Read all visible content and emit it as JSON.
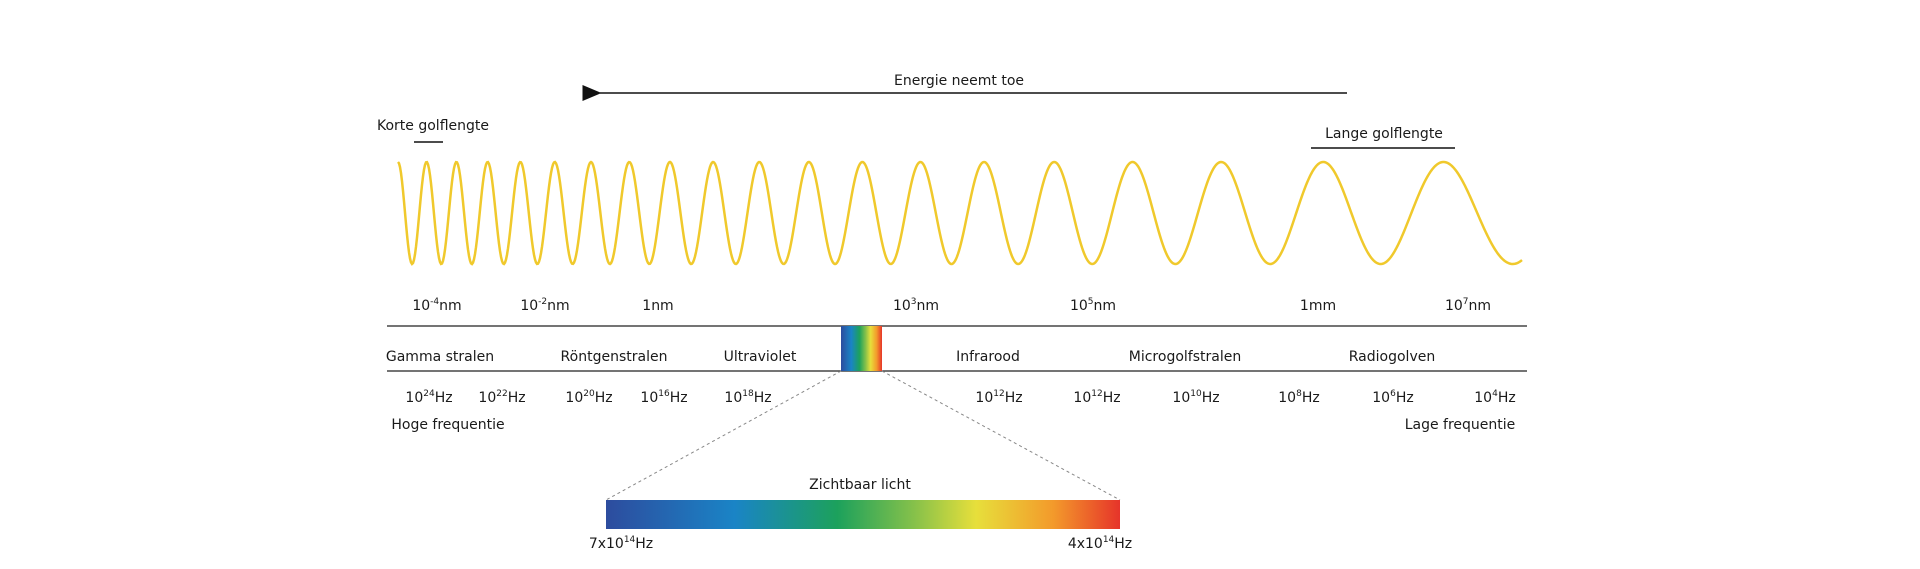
{
  "arrow_label": "Energie neemt toe",
  "short_wavelength": "Korte golflengte",
  "long_wavelength": "Lange golflengte",
  "wavelengths": [
    {
      "main": "10",
      "sup": "-4",
      "unit": "nm"
    },
    {
      "main": "10",
      "sup": "-2",
      "unit": "nm"
    },
    {
      "main": "1nm"
    },
    {
      "main": "10",
      "sup": "3",
      "unit": "nm"
    },
    {
      "main": "10",
      "sup": "5",
      "unit": "nm"
    },
    {
      "main": "1mm"
    },
    {
      "main": "10",
      "sup": "7",
      "unit": "nm"
    }
  ],
  "bands": [
    "Gamma stralen",
    "Röntgenstralen",
    "Ultraviolet",
    "Infrarood",
    "Microgolfstralen",
    "Radiogolven"
  ],
  "frequencies": [
    {
      "main": "10",
      "sup": "24",
      "unit": "Hz"
    },
    {
      "main": "10",
      "sup": "22",
      "unit": "Hz"
    },
    {
      "main": "10",
      "sup": "20",
      "unit": "Hz"
    },
    {
      "main": "10",
      "sup": "16",
      "unit": "Hz"
    },
    {
      "main": "10",
      "sup": "18",
      "unit": "Hz"
    },
    {
      "main": "10",
      "sup": "12",
      "unit": "Hz"
    },
    {
      "main": "10",
      "sup": "12",
      "unit": "Hz"
    },
    {
      "main": "10",
      "sup": "10",
      "unit": "Hz"
    },
    {
      "main": "10",
      "sup": "8",
      "unit": "Hz"
    },
    {
      "main": "10",
      "sup": "6",
      "unit": "Hz"
    },
    {
      "main": "10",
      "sup": "4",
      "unit": "Hz"
    }
  ],
  "high_frequency": "Hoge frequentie",
  "low_frequency": "Lage frequentie",
  "visible_light": {
    "title": "Zichtbaar licht",
    "start": {
      "main": "7x10",
      "sup": "14",
      "unit": "Hz"
    },
    "end": {
      "main": "4x10",
      "sup": "14",
      "unit": "Hz"
    }
  }
}
